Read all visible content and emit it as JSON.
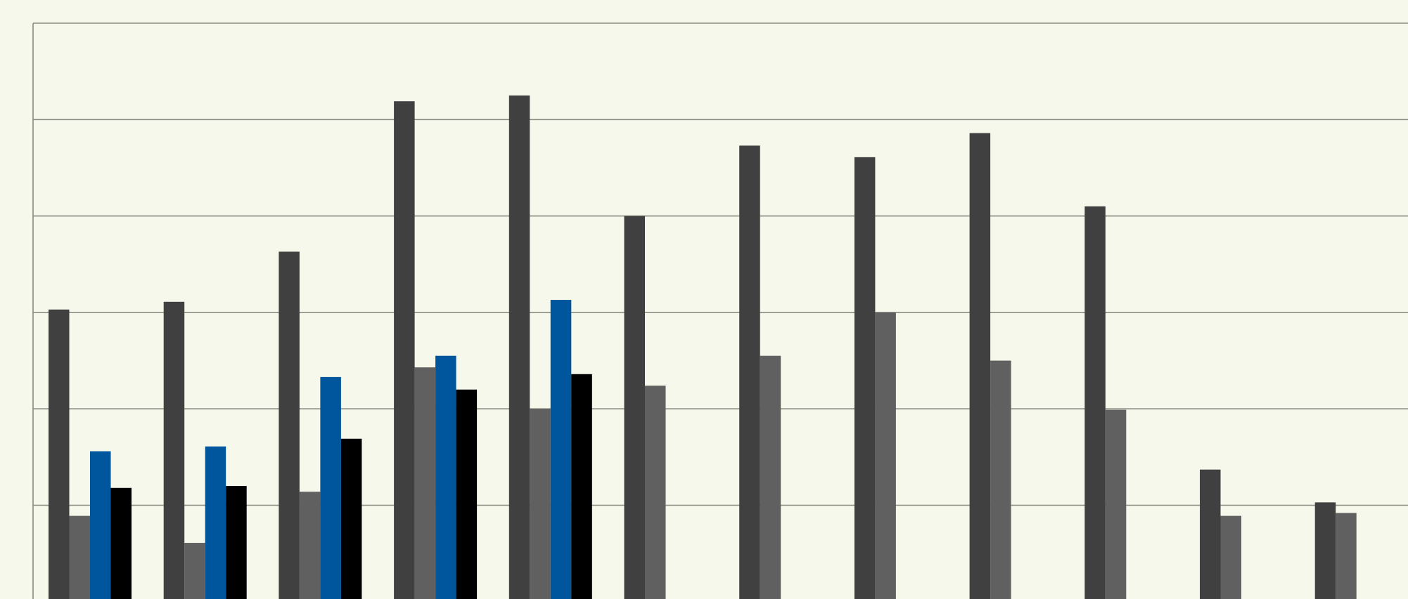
{
  "chart_data": {
    "type": "bar",
    "title": "",
    "xlabel": "",
    "ylabel": "",
    "ylim": [
      0,
      6
    ],
    "grid": true,
    "legend": "none",
    "categories": [
      "",
      "",
      "",
      "",
      "",
      "",
      "",
      "",
      "",
      "",
      "",
      ""
    ],
    "series": [
      {
        "color": "#404040",
        "values": [
          3.03,
          3.11,
          3.63,
          5.19,
          5.25,
          4.0,
          4.73,
          4.61,
          4.86,
          4.1,
          1.37,
          1.03
        ]
      },
      {
        "color": "#606060",
        "values": [
          0.89,
          0.61,
          1.14,
          2.43,
          2.0,
          2.24,
          2.55,
          3.0,
          2.5,
          1.99,
          0.89,
          0.92
        ]
      },
      {
        "color": "#00569d",
        "values": [
          1.56,
          1.61,
          2.33,
          2.55,
          3.13,
          null,
          null,
          null,
          null,
          null,
          null,
          null
        ]
      },
      {
        "color": "#000000",
        "values": [
          1.18,
          1.2,
          1.69,
          2.2,
          2.36,
          null,
          null,
          null,
          null,
          null,
          null,
          null
        ]
      }
    ]
  }
}
